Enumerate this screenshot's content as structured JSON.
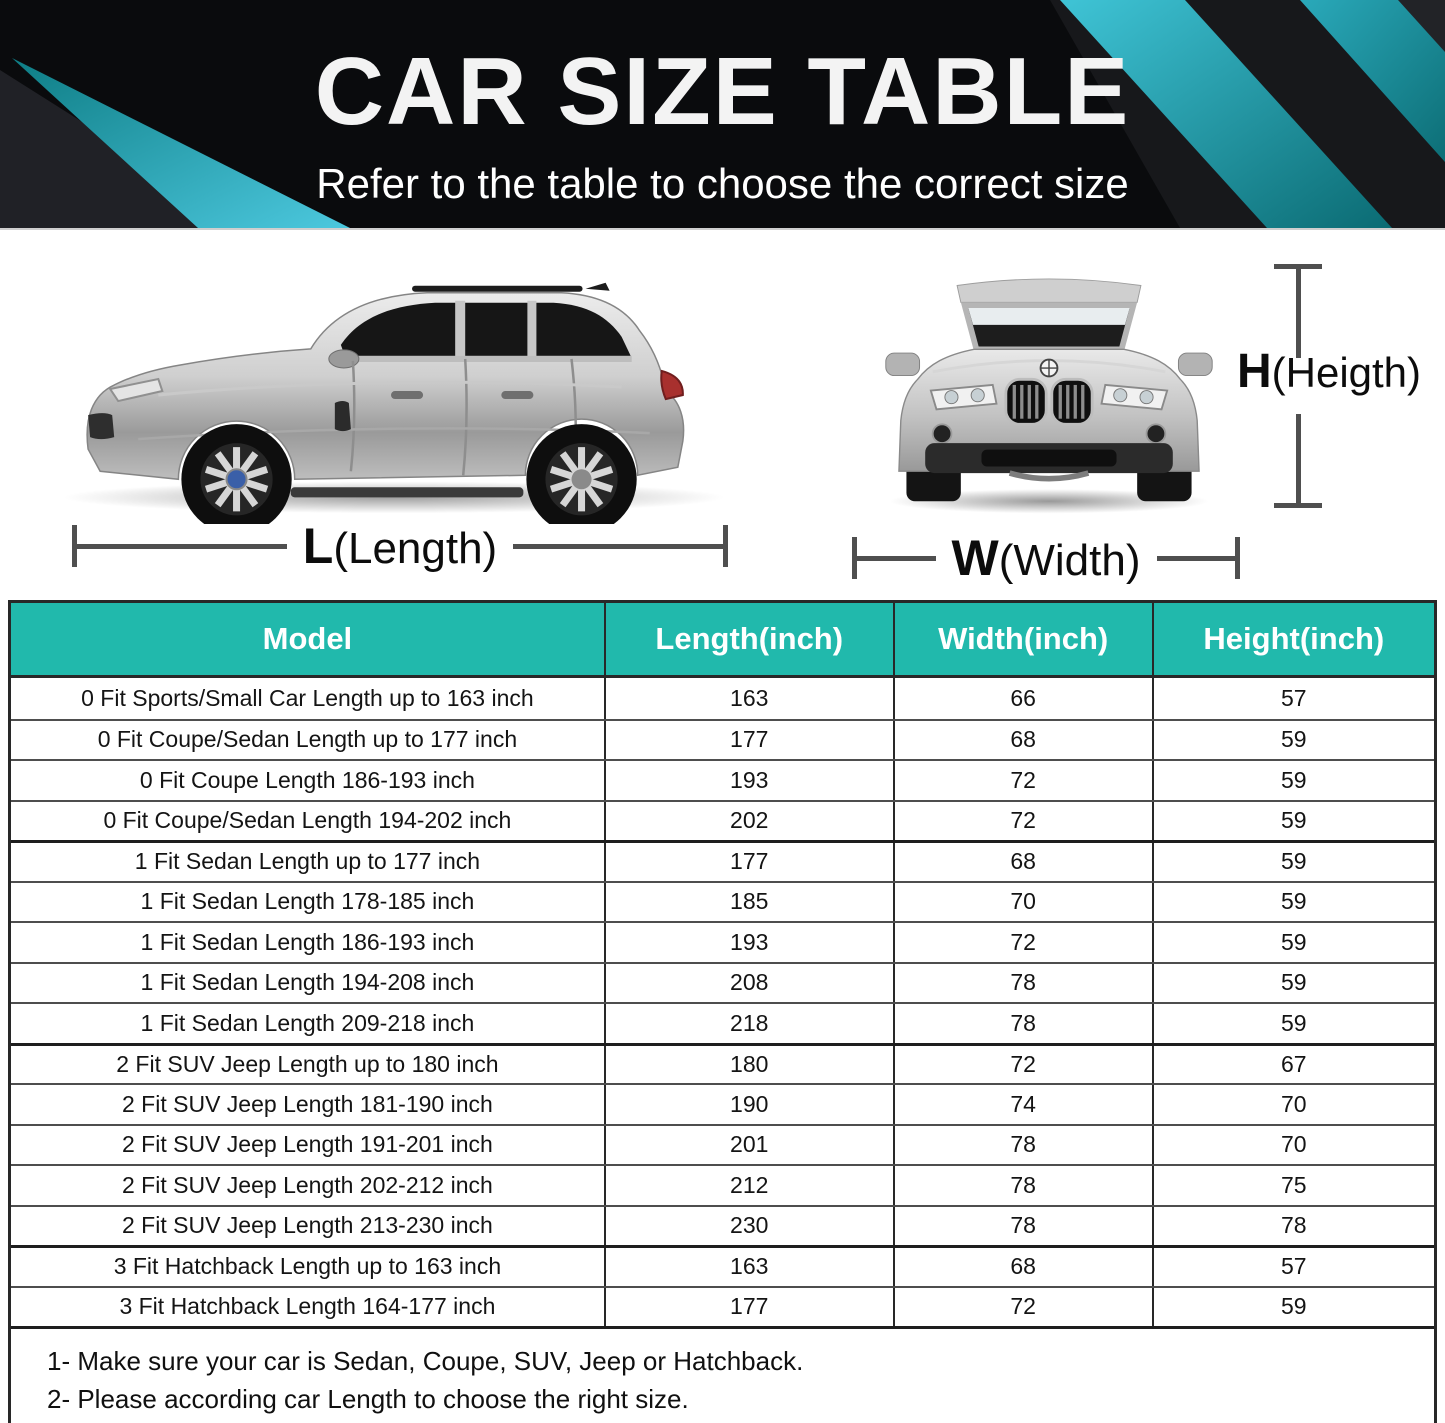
{
  "banner": {
    "title": "CAR SIZE TABLE",
    "subtitle": "Refer to the table to choose the correct size"
  },
  "diagram": {
    "length": {
      "prefix": "L",
      "label": "(Length)"
    },
    "width": {
      "prefix": "W",
      "label": "(Width)"
    },
    "height": {
      "prefix": "H",
      "label": "(Heigth)"
    }
  },
  "table": {
    "columns": [
      "Model",
      "Length(inch)",
      "Width(inch)",
      "Height(inch)"
    ],
    "rows": [
      {
        "model": "0 Fit Sports/Small Car Length up to 163 inch",
        "length": "163",
        "width": "66",
        "height": "57",
        "group_start": false
      },
      {
        "model": "0 Fit Coupe/Sedan Length up to 177 inch",
        "length": "177",
        "width": "68",
        "height": "59",
        "group_start": false
      },
      {
        "model": "0 Fit Coupe Length 186-193 inch",
        "length": "193",
        "width": "72",
        "height": "59",
        "group_start": false
      },
      {
        "model": "0 Fit Coupe/Sedan Length 194-202 inch",
        "length": "202",
        "width": "72",
        "height": "59",
        "group_start": false
      },
      {
        "model": "1 Fit Sedan Length up to 177 inch",
        "length": "177",
        "width": "68",
        "height": "59",
        "group_start": true
      },
      {
        "model": "1 Fit Sedan Length 178-185 inch",
        "length": "185",
        "width": "70",
        "height": "59",
        "group_start": false
      },
      {
        "model": "1 Fit Sedan Length 186-193 inch",
        "length": "193",
        "width": "72",
        "height": "59",
        "group_start": false
      },
      {
        "model": "1 Fit Sedan Length 194-208 inch",
        "length": "208",
        "width": "78",
        "height": "59",
        "group_start": false
      },
      {
        "model": "1 Fit Sedan Length 209-218 inch",
        "length": "218",
        "width": "78",
        "height": "59",
        "group_start": false
      },
      {
        "model": "2 Fit SUV Jeep Length up to 180 inch",
        "length": "180",
        "width": "72",
        "height": "67",
        "group_start": true
      },
      {
        "model": "2 Fit SUV Jeep Length 181-190 inch",
        "length": "190",
        "width": "74",
        "height": "70",
        "group_start": false
      },
      {
        "model": "2 Fit SUV Jeep Length 191-201 inch",
        "length": "201",
        "width": "78",
        "height": "70",
        "group_start": false
      },
      {
        "model": "2 Fit SUV Jeep Length 202-212 inch",
        "length": "212",
        "width": "78",
        "height": "75",
        "group_start": false
      },
      {
        "model": "2 Fit SUV Jeep Length 213-230 inch",
        "length": "230",
        "width": "78",
        "height": "78",
        "group_start": false
      },
      {
        "model": "3 Fit Hatchback Length up to 163 inch",
        "length": "163",
        "width": "68",
        "height": "57",
        "group_start": true
      },
      {
        "model": "3 Fit Hatchback Length 164-177 inch",
        "length": "177",
        "width": "72",
        "height": "59",
        "group_start": false
      }
    ]
  },
  "notes": [
    "1- Make sure your car is Sedan, Coupe, SUV, Jeep or Hatchback.",
    "2- Please according car Length to choose the right size."
  ],
  "colors": {
    "banner_bg": "#0a0b0d",
    "banner_teal_bright": "#45c6da",
    "banner_teal_dark": "#0e7079",
    "table_header_bg": "#21b9ac",
    "table_border": "#282828",
    "row_divider": "#4e4e4e",
    "dim_line": "#4f4f4f"
  }
}
